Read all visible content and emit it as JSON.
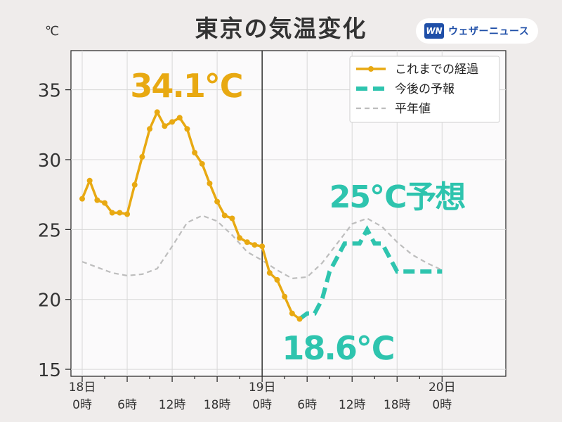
{
  "header": {
    "title": "東京の気温変化",
    "unit": "℃",
    "logo_mark": "WN",
    "logo_text": "ウェザーニュース"
  },
  "chart_data": {
    "type": "line",
    "title": "東京の気温変化",
    "ylabel": "℃",
    "xlabel": "",
    "ylim": [
      14.5,
      37.8
    ],
    "xlim_hours": [
      -1.5,
      56.5
    ],
    "x_unit": "hours from 18日 0時",
    "grid": true,
    "y_ticks": [
      15,
      20,
      25,
      30,
      35
    ],
    "x_ticks": [
      {
        "h": 0,
        "label": "18日\n0時"
      },
      {
        "h": 6,
        "label": "6時"
      },
      {
        "h": 12,
        "label": "12時"
      },
      {
        "h": 18,
        "label": "18時"
      },
      {
        "h": 24,
        "label": "19日\n0時"
      },
      {
        "h": 30,
        "label": "6時"
      },
      {
        "h": 36,
        "label": "12時"
      },
      {
        "h": 42,
        "label": "18時"
      },
      {
        "h": 48,
        "label": "20日\n0時"
      }
    ],
    "now_hour": 24,
    "legend_position": "top-right",
    "series": [
      {
        "name": "これまでの経過",
        "style": "solid-markers",
        "color": "#e8a912",
        "x": [
          0,
          1,
          2,
          3,
          4,
          5,
          6,
          7,
          8,
          9,
          10,
          11,
          12,
          13,
          14,
          15,
          16,
          17,
          18,
          19,
          20,
          21,
          22,
          23,
          24,
          25,
          26,
          27,
          28,
          29
        ],
        "y": [
          27.2,
          28.5,
          27.1,
          26.9,
          26.2,
          26.2,
          26.1,
          28.2,
          30.2,
          32.2,
          33.4,
          32.4,
          32.7,
          33.0,
          32.2,
          30.5,
          29.7,
          28.3,
          27.0,
          26.0,
          25.8,
          24.4,
          24.1,
          23.9,
          23.8,
          21.9,
          21.4,
          20.2,
          19.0,
          18.6
        ]
      },
      {
        "name": "今後の予報",
        "style": "dashed-thick",
        "color": "#2ec4ae",
        "x": [
          29,
          30,
          31,
          32,
          33,
          34,
          35,
          36,
          37,
          38,
          39,
          40,
          41,
          42,
          43,
          44,
          45,
          46,
          47,
          48
        ],
        "y": [
          18.6,
          19.0,
          19.0,
          20.0,
          22.0,
          23.0,
          24.0,
          24.0,
          24.0,
          25.0,
          24.0,
          24.0,
          23.0,
          22.0,
          22.0,
          22.0,
          22.0,
          22.0,
          22.0,
          22.0
        ]
      },
      {
        "name": "平年値",
        "style": "dashed-thin",
        "color": "#bdbdbd",
        "x": [
          0,
          2,
          4,
          6,
          8,
          10,
          12,
          14,
          16,
          18,
          20,
          22,
          24,
          26,
          28,
          30,
          32,
          34,
          36,
          38,
          40,
          42,
          44,
          46,
          48
        ],
        "y": [
          22.7,
          22.3,
          21.9,
          21.7,
          21.8,
          22.2,
          23.8,
          25.5,
          26.0,
          25.6,
          24.6,
          23.4,
          22.8,
          22.1,
          21.5,
          21.6,
          22.6,
          24.0,
          25.4,
          25.8,
          25.2,
          24.1,
          23.2,
          22.6,
          22.1
        ]
      }
    ],
    "annotations": [
      {
        "text": "34.1℃",
        "color": "#e8a912"
      },
      {
        "text": "18.6℃",
        "color": "#2ec4ae"
      },
      {
        "text": "25℃予想",
        "color": "#2ec4ae"
      }
    ]
  }
}
